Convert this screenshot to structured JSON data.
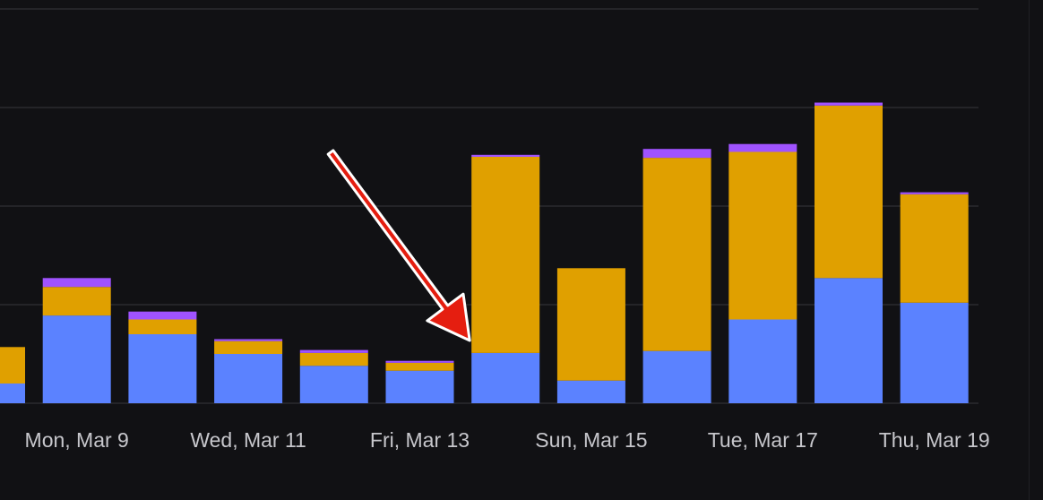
{
  "chart_data": {
    "type": "bar",
    "stacked": true,
    "title": "",
    "xlabel": "",
    "ylabel": "",
    "ylim": [
      0,
      4.2
    ],
    "grid": true,
    "legend": "none",
    "categories": [
      "Sun, Mar 8",
      "Mon, Mar 9",
      "Tue, Mar 10",
      "Wed, Mar 11",
      "Thu, Mar 12",
      "Fri, Mar 13",
      "Sat, Mar 14",
      "Sun, Mar 15",
      "Mon, Mar 16",
      "Tue, Mar 17",
      "Wed, Mar 18",
      "Thu, Mar 19"
    ],
    "tick_labels": [
      "Mon, Mar 9",
      "Wed, Mar 11",
      "Fri, Mar 13",
      "Sun, Mar 15",
      "Tue, Mar 17",
      "Thu, Mar 19"
    ],
    "series": [
      {
        "name": "blue",
        "color": "#5b82ff",
        "values": [
          0.2,
          0.89,
          0.7,
          0.5,
          0.38,
          0.33,
          0.51,
          0.23,
          0.53,
          0.85,
          1.27,
          1.02
        ]
      },
      {
        "name": "orange",
        "color": "#e0a000",
        "values": [
          0.37,
          0.29,
          0.15,
          0.13,
          0.13,
          0.08,
          1.99,
          1.14,
          1.96,
          1.7,
          1.75,
          1.1
        ]
      },
      {
        "name": "purple",
        "color": "#a053ff",
        "values": [
          0.0,
          0.09,
          0.08,
          0.02,
          0.03,
          0.02,
          0.02,
          0.0,
          0.09,
          0.08,
          0.03,
          0.02
        ]
      }
    ],
    "annotations": [
      {
        "type": "arrow",
        "color": "#e51e10",
        "points_to": "Sat, Mar 14"
      }
    ]
  }
}
